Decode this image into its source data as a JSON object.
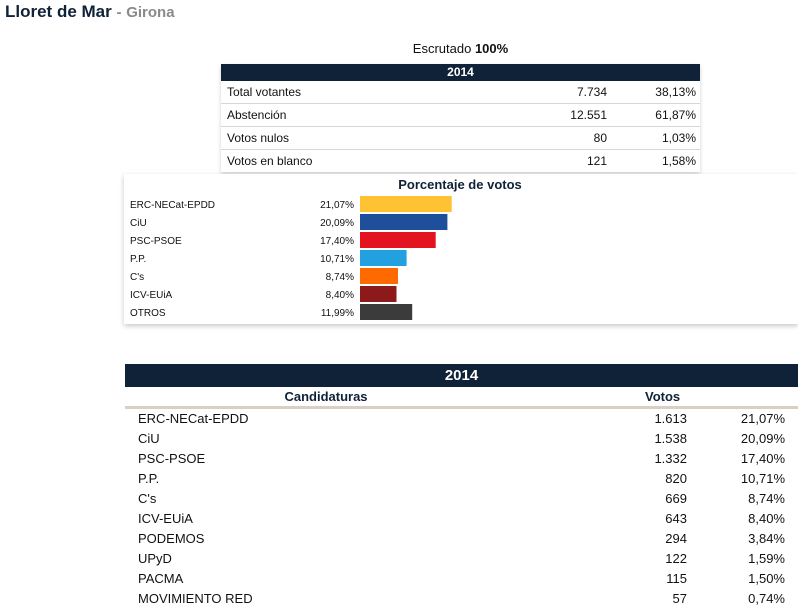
{
  "header": {
    "municipality": "Lloret de Mar",
    "separator": "-",
    "province": "Girona"
  },
  "scrutiny": {
    "label": "Escrutado",
    "value": "100%"
  },
  "summary": {
    "year": "2014",
    "rows": [
      {
        "label": "Total votantes",
        "value": "7.734",
        "pct": "38,13%"
      },
      {
        "label": "Abstención",
        "value": "12.551",
        "pct": "61,87%"
      },
      {
        "label": "Votos nulos",
        "value": "80",
        "pct": "1,03%"
      },
      {
        "label": "Votos en blanco",
        "value": "121",
        "pct": "1,58%"
      }
    ]
  },
  "chart_data": {
    "type": "bar",
    "orientation": "horizontal",
    "title": "Porcentaje de votos",
    "categories": [
      "ERC-NECat-EPDD",
      "CiU",
      "PSC-PSOE",
      "P.P.",
      "C's",
      "ICV-EUiA",
      "OTROS"
    ],
    "values": [
      21.07,
      20.09,
      17.4,
      10.71,
      8.74,
      8.4,
      11.99
    ],
    "value_labels": [
      "21,07%",
      "20,09%",
      "17,40%",
      "10,71%",
      "8,74%",
      "8,40%",
      "11,99%"
    ],
    "colors": [
      "#ffc233",
      "#1f4e9b",
      "#e3141f",
      "#22a0e0",
      "#ff6a00",
      "#8c1a1a",
      "#3b3b3b"
    ],
    "xlim": [
      0,
      100
    ],
    "grid": false,
    "legend": "none"
  },
  "results": {
    "year": "2014",
    "col_candidaturas": "Candidaturas",
    "col_votos": "Votos",
    "rows": [
      {
        "name": "ERC-NECat-EPDD",
        "votes": "1.613",
        "pct": "21,07%"
      },
      {
        "name": "CiU",
        "votes": "1.538",
        "pct": "20,09%"
      },
      {
        "name": "PSC-PSOE",
        "votes": "1.332",
        "pct": "17,40%"
      },
      {
        "name": "P.P.",
        "votes": "820",
        "pct": "10,71%"
      },
      {
        "name": "C's",
        "votes": "669",
        "pct": "8,74%"
      },
      {
        "name": "ICV-EUiA",
        "votes": "643",
        "pct": "8,40%"
      },
      {
        "name": "PODEMOS",
        "votes": "294",
        "pct": "3,84%"
      },
      {
        "name": "UPyD",
        "votes": "122",
        "pct": "1,59%"
      },
      {
        "name": "PACMA",
        "votes": "115",
        "pct": "1,50%"
      },
      {
        "name": "MOVIMIENTO RED",
        "votes": "57",
        "pct": "0,74%"
      }
    ]
  }
}
